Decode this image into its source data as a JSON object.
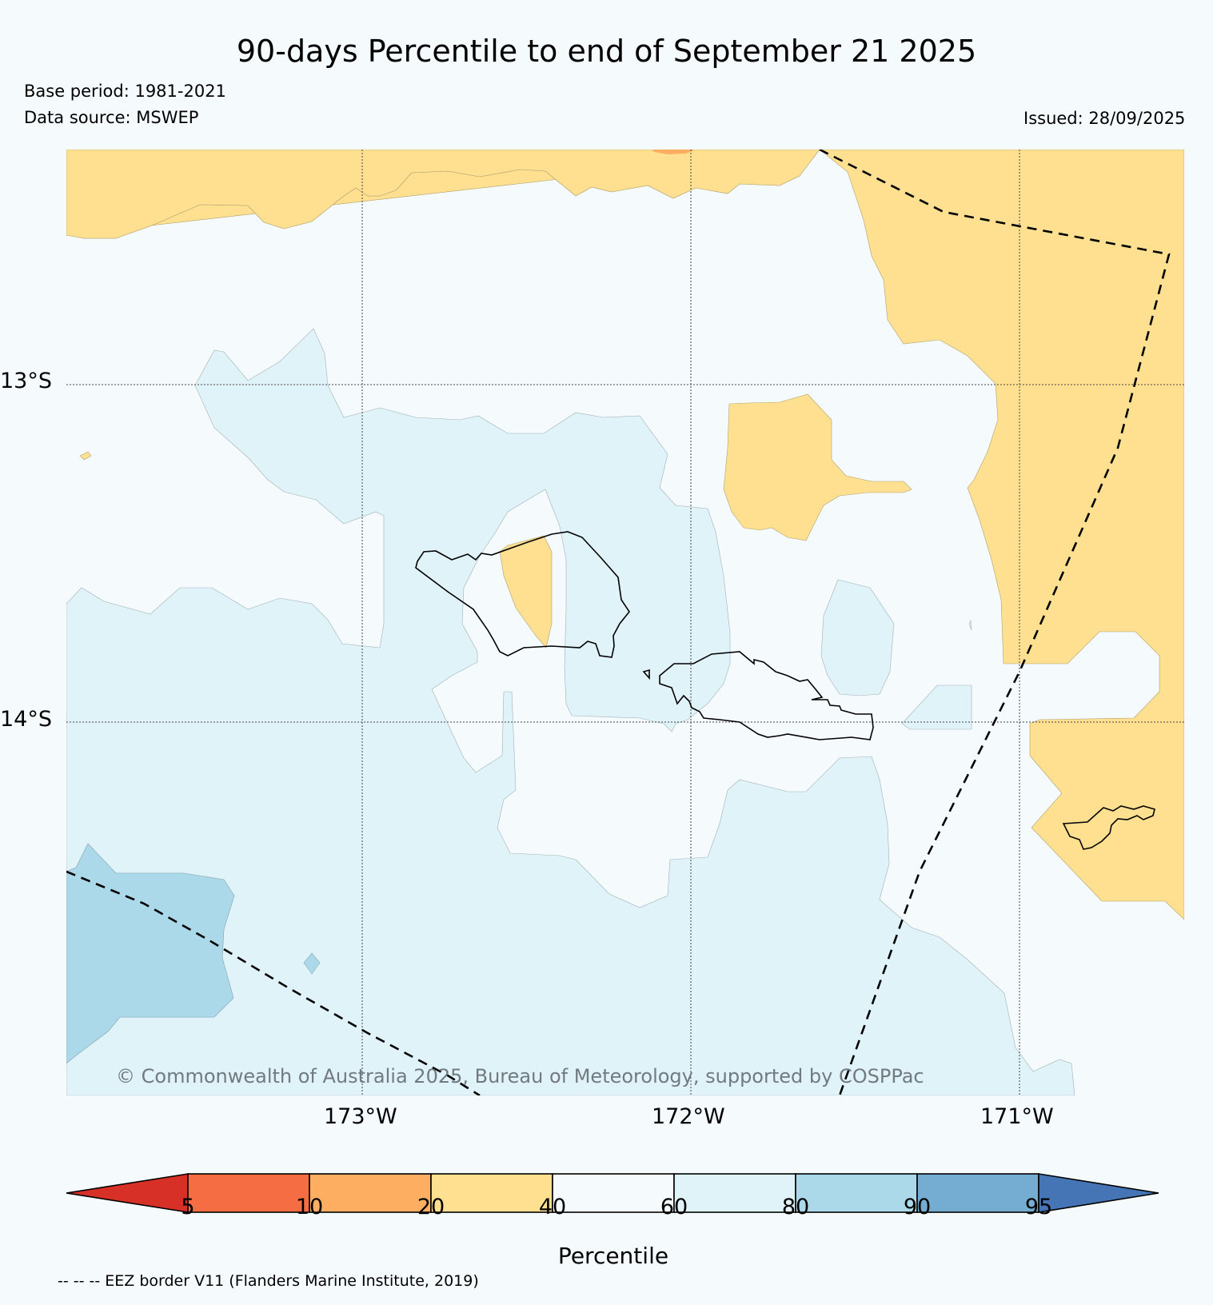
{
  "title": "90-days Percentile to end of September 21 2025",
  "base_period": "Base period: 1981-2021",
  "data_source": "Data source: MSWEP",
  "issued": "Issued: 28/09/2025",
  "map": {
    "lat_labels": [
      "13°S",
      "14°S"
    ],
    "lon_labels": [
      "173°W",
      "172°W",
      "171°W"
    ],
    "credit": "© Commonwealth of Australia 2025, Bureau of Meteorology, supported by COSPPac",
    "colors": {
      "p20_40": "#fee090",
      "p10_20": "#fdae61",
      "p40_60": "#f5fbfd",
      "p60_80": "#e0f3f8",
      "p80_90": "#abd9e9"
    }
  },
  "colorbar": {
    "title": "Percentile",
    "ticks": [
      "5",
      "10",
      "20",
      "40",
      "60",
      "80",
      "90",
      "95"
    ],
    "colors": [
      "#d73027",
      "#f46d43",
      "#fdae61",
      "#fee090",
      "#f5fbfd",
      "#e0f3f8",
      "#abd9e9",
      "#74add1",
      "#4575b4"
    ]
  },
  "eez_note": "-- -- -- EEZ border V11 (Flanders Marine Institute, 2019)"
}
